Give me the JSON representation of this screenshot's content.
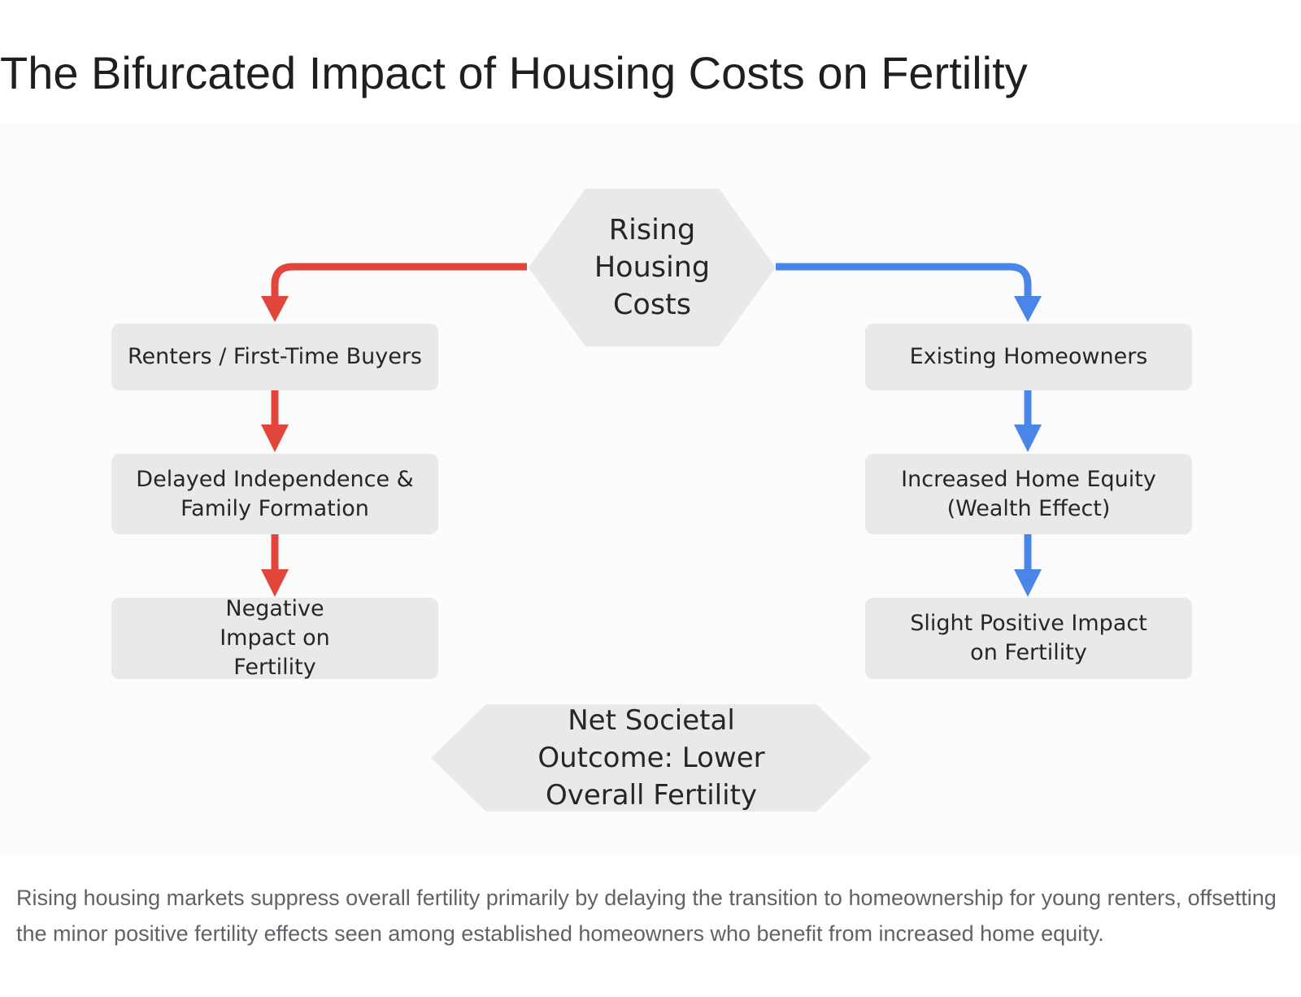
{
  "page": {
    "title": "The Bifurcated Impact of Housing Costs on Fertility",
    "caption": "Rising housing markets suppress overall fertility primarily by delaying the transition to homeownership for young renters, offsetting the minor positive fertility effects seen among established homeowners who benefit from increased home equity."
  },
  "diagram": {
    "root": "Rising Housing Costs",
    "left_branch": {
      "color": "#e2463b",
      "nodes": [
        "Renters / First-Time Buyers",
        "Delayed Independence & Family Formation",
        "Negative Impact on Fertility"
      ]
    },
    "right_branch": {
      "color": "#4a86e8",
      "nodes": [
        "Existing Homeowners",
        "Increased Home Equity (Wealth Effect)",
        "Slight Positive Impact on Fertility"
      ]
    },
    "outcome": "Net Societal Outcome: Lower Overall Fertility",
    "node_fill": "#e8e9eb"
  }
}
